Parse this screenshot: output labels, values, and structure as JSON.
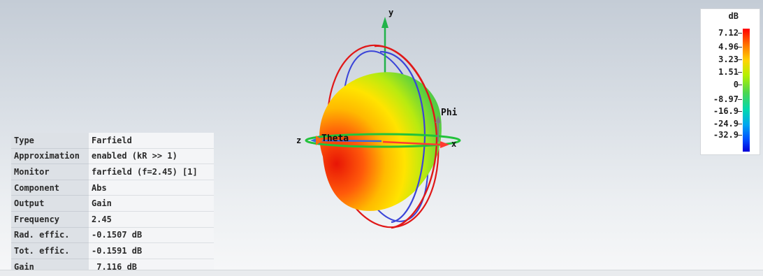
{
  "info_table": [
    {
      "key": "Type",
      "value": "Farfield"
    },
    {
      "key": "Approximation",
      "value": "enabled (kR >> 1)"
    },
    {
      "key": "Monitor",
      "value": "farfield (f=2.45) [1]"
    },
    {
      "key": "Component",
      "value": "Abs"
    },
    {
      "key": "Output",
      "value": "Gain"
    },
    {
      "key": "Frequency",
      "value": "2.45"
    },
    {
      "key": "Rad. effic.",
      "value": "-0.1507 dB"
    },
    {
      "key": "Tot. effic.",
      "value": "-0.1591 dB"
    },
    {
      "key": "Gain",
      "value": " 7.116 dB"
    }
  ],
  "legend": {
    "unit": "dB",
    "labels": [
      "7.12",
      "4.96",
      "3.23",
      "1.51",
      "0",
      "-8.97",
      "-16.9",
      "-24.9",
      "-32.9"
    ],
    "colors": {
      "max": "#ff0000",
      "mid": "#4cd650",
      "min": "#0000d8"
    }
  },
  "axes": {
    "x_label": "x",
    "y_label": "y",
    "z_label": "z",
    "theta_label": "Theta",
    "phi_label": "Phi",
    "colors": {
      "x": "#ff3b30",
      "y": "#22b34a",
      "z": "#3a6bdc",
      "phi": "#808080"
    }
  },
  "pattern": {
    "shape": "sphere-gain-pattern",
    "colors": {
      "hot": "#ff1a0a",
      "warm": "#ffd200",
      "cool": "#46c64a",
      "ring_red": "#e01818",
      "ring_blue": "#3a44d8",
      "ring_green": "#22c23a"
    }
  }
}
